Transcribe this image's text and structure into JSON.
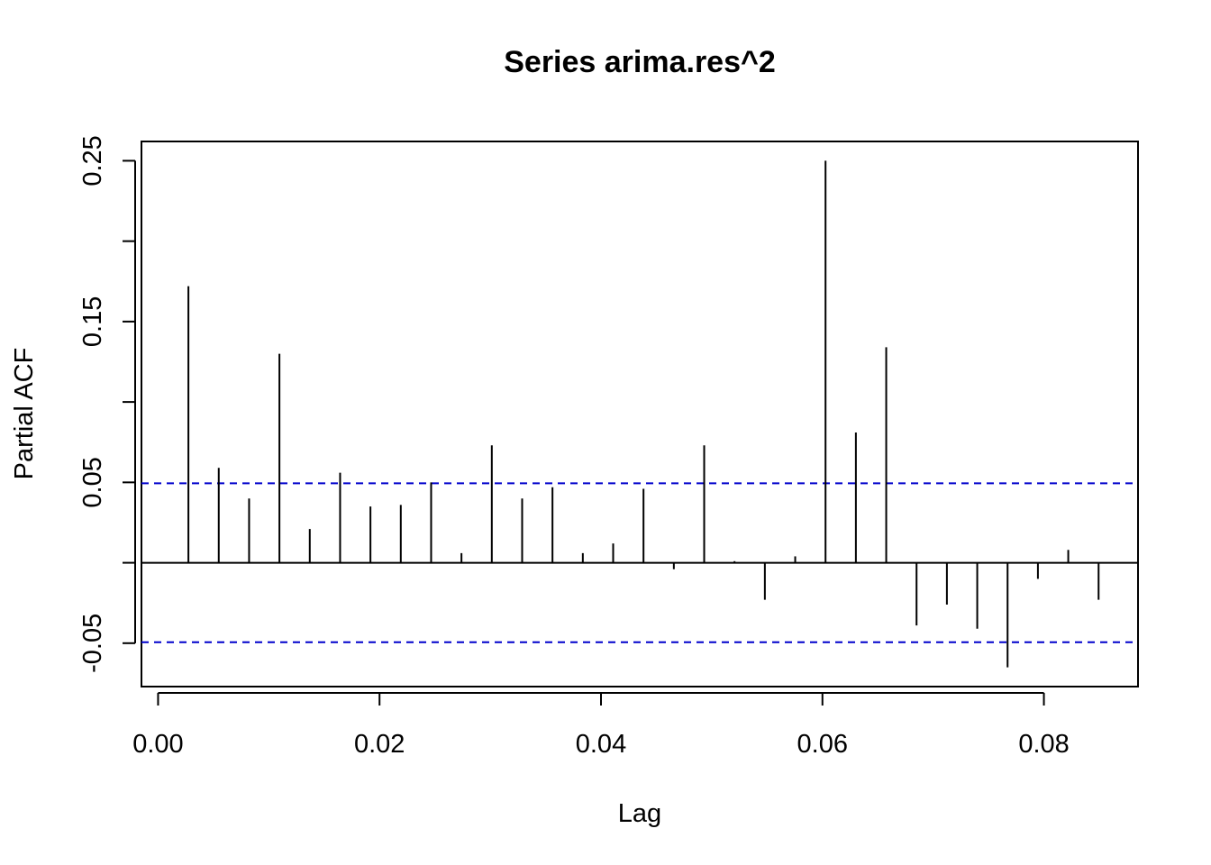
{
  "chart_data": {
    "type": "bar",
    "title": "Series  arima.res^2",
    "xlabel": "Lag",
    "ylabel": "Partial ACF",
    "xlim": [
      -0.0015,
      0.0885
    ],
    "ylim": [
      -0.077,
      0.262
    ],
    "x_ticks": [
      0.0,
      0.02,
      0.04,
      0.06,
      0.08
    ],
    "x_tick_labels": [
      "0.00",
      "0.02",
      "0.04",
      "0.06",
      "0.08"
    ],
    "y_ticks": [
      -0.05,
      0.0,
      0.05,
      0.1,
      0.15,
      0.2,
      0.25
    ],
    "y_tick_labels": [
      "-0.05",
      "",
      "0.05",
      "",
      "0.15",
      "",
      "0.25"
    ],
    "confidence_bound": 0.0494,
    "x": [
      0.00274,
      0.00548,
      0.00822,
      0.01096,
      0.0137,
      0.01644,
      0.01918,
      0.02192,
      0.02466,
      0.0274,
      0.03014,
      0.03288,
      0.03562,
      0.03836,
      0.0411,
      0.04384,
      0.04658,
      0.04932,
      0.05206,
      0.0548,
      0.05754,
      0.06028,
      0.06302,
      0.06576,
      0.0685,
      0.07124,
      0.07398,
      0.07672,
      0.07946,
      0.0822,
      0.08494
    ],
    "values": [
      0.172,
      0.059,
      0.04,
      0.13,
      0.021,
      0.056,
      0.035,
      0.036,
      0.05,
      0.006,
      0.073,
      0.04,
      0.047,
      0.006,
      0.012,
      0.046,
      -0.004,
      0.073,
      0.001,
      -0.023,
      0.004,
      0.25,
      0.081,
      0.134,
      -0.039,
      -0.026,
      -0.041,
      -0.065,
      -0.01,
      0.008,
      -0.023
    ],
    "colors": {
      "bars": "#000000",
      "confidence": "#0000cc",
      "axes": "#000000"
    },
    "grid": false
  }
}
